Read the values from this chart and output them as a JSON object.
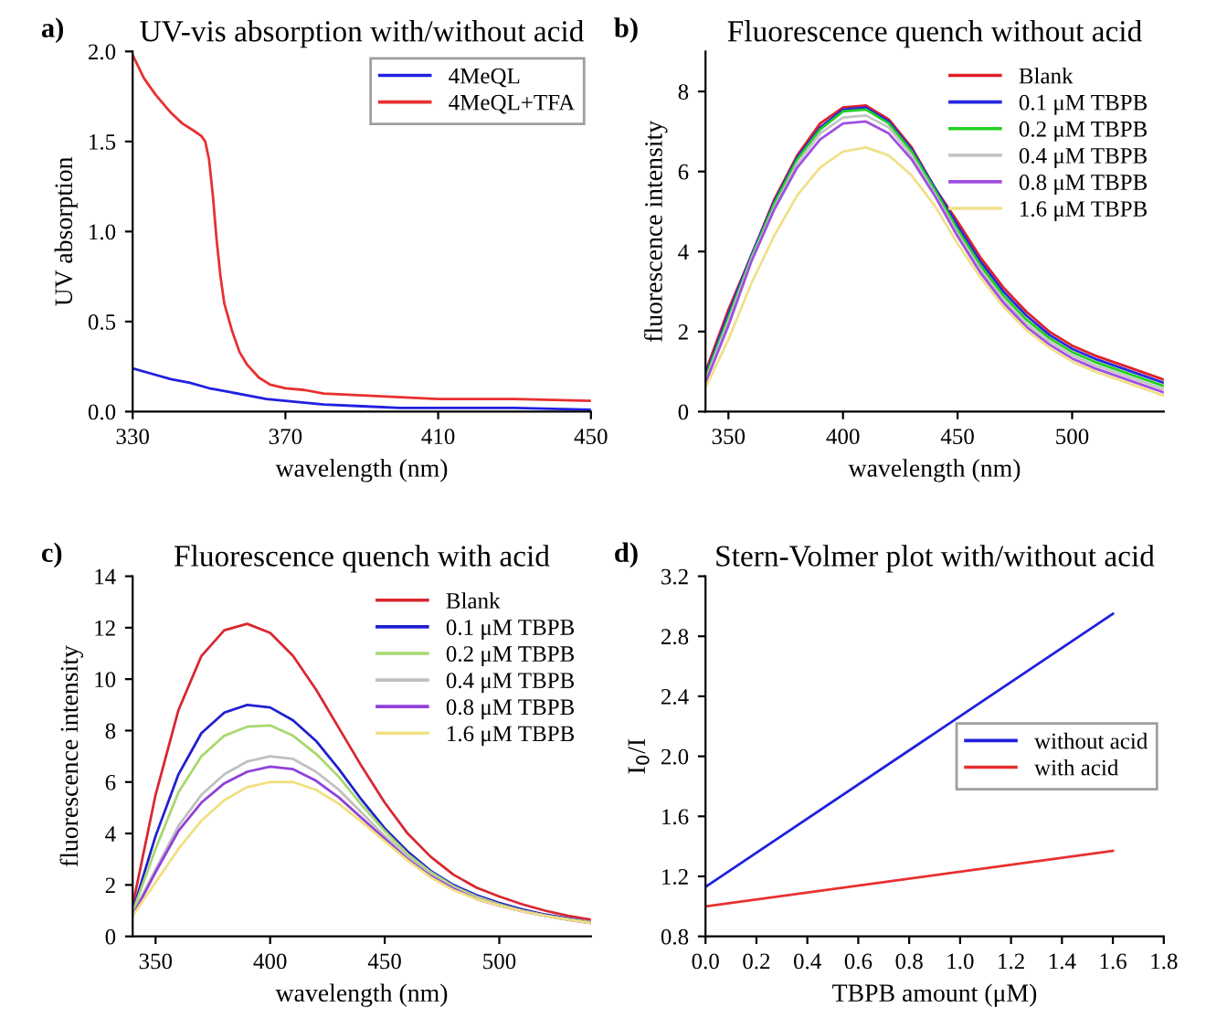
{
  "chart_data": [
    {
      "type": "line",
      "title": "UV-vis absorption with/without acid",
      "xlabel": "wavelength (nm)",
      "ylabel": "UV absorption",
      "annotations": [
        "a)"
      ],
      "xlim": [
        330,
        450
      ],
      "xticks": [
        330,
        370,
        410,
        450
      ],
      "ylim": [
        0,
        2.0
      ],
      "yticks": [
        {
          "value": 0,
          "label": "0.0"
        },
        {
          "value": 0.5,
          "label": "0.5"
        },
        {
          "value": 1.0,
          "label": "1.0"
        },
        {
          "value": 1.5,
          "label": "1.5"
        },
        {
          "value": 2.0,
          "label": "2.0"
        }
      ],
      "legend": "top right",
      "grid": false,
      "series": [
        {
          "name": "4MeQL",
          "color": "#2020e0",
          "x": [
            330,
            335,
            340,
            345,
            350,
            355,
            360,
            365,
            370,
            380,
            390,
            400,
            410,
            430,
            450
          ],
          "values": [
            0.24,
            0.21,
            0.18,
            0.16,
            0.13,
            0.11,
            0.09,
            0.07,
            0.06,
            0.04,
            0.03,
            0.02,
            0.02,
            0.02,
            0.01
          ]
        },
        {
          "name": "4MeQL+TFA",
          "color": "#e83030",
          "x": [
            330,
            333,
            336,
            340,
            343,
            346,
            348,
            349,
            350,
            351,
            352,
            353,
            354,
            356,
            358,
            360,
            363,
            366,
            370,
            375,
            380,
            390,
            400,
            410,
            430,
            450
          ],
          "values": [
            1.98,
            1.85,
            1.76,
            1.66,
            1.6,
            1.56,
            1.53,
            1.5,
            1.4,
            1.2,
            0.95,
            0.75,
            0.6,
            0.45,
            0.33,
            0.26,
            0.19,
            0.15,
            0.13,
            0.12,
            0.1,
            0.09,
            0.08,
            0.07,
            0.07,
            0.06
          ]
        }
      ]
    },
    {
      "type": "line",
      "title": "Fluorescence quench without acid",
      "xlabel": "wavelength (nm)",
      "ylabel": "fluorescence intensity",
      "annotations": [
        "b)"
      ],
      "x": [
        340,
        350,
        360,
        370,
        380,
        390,
        400,
        410,
        420,
        430,
        440,
        450,
        460,
        470,
        480,
        490,
        500,
        510,
        520,
        530,
        540
      ],
      "xlim": [
        340,
        540
      ],
      "xticks": [
        350,
        400,
        450,
        500
      ],
      "ylim": [
        0,
        9
      ],
      "yticks": [
        0,
        2,
        4,
        6,
        8
      ],
      "legend": "top right",
      "grid": false,
      "series": [
        {
          "name": "Blank",
          "color": "#e02028",
          "values": [
            1.0,
            2.55,
            3.9,
            5.3,
            6.4,
            7.2,
            7.6,
            7.65,
            7.3,
            6.6,
            5.6,
            4.75,
            3.85,
            3.1,
            2.5,
            2.0,
            1.65,
            1.4,
            1.2,
            1.0,
            0.8
          ]
        },
        {
          "name": "0.1 μM TBPB",
          "color": "#2828e0",
          "values": [
            0.92,
            2.45,
            3.9,
            5.25,
            6.35,
            7.1,
            7.55,
            7.6,
            7.25,
            6.55,
            5.6,
            4.65,
            3.75,
            3.0,
            2.4,
            1.92,
            1.57,
            1.32,
            1.12,
            0.92,
            0.72
          ]
        },
        {
          "name": "0.2 μM TBPB",
          "color": "#20d020",
          "values": [
            0.85,
            2.35,
            3.85,
            5.2,
            6.3,
            7.05,
            7.5,
            7.55,
            7.2,
            6.5,
            5.55,
            4.55,
            3.65,
            2.9,
            2.3,
            1.84,
            1.49,
            1.24,
            1.04,
            0.84,
            0.64
          ]
        },
        {
          "name": "0.4 μM TBPB",
          "color": "#c4c4c4",
          "values": [
            0.78,
            2.25,
            3.8,
            5.1,
            6.2,
            6.95,
            7.35,
            7.4,
            7.1,
            6.4,
            5.45,
            4.45,
            3.55,
            2.8,
            2.2,
            1.76,
            1.41,
            1.16,
            0.96,
            0.76,
            0.56
          ]
        },
        {
          "name": "0.8 μM TBPB",
          "color": "#a050e0",
          "values": [
            0.72,
            2.15,
            3.75,
            5.05,
            6.1,
            6.8,
            7.2,
            7.25,
            6.95,
            6.3,
            5.4,
            4.38,
            3.47,
            2.72,
            2.12,
            1.68,
            1.33,
            1.08,
            0.88,
            0.68,
            0.48
          ]
        },
        {
          "name": "1.6 μM TBPB",
          "color": "#f0e08a",
          "values": [
            0.6,
            1.8,
            3.2,
            4.4,
            5.4,
            6.1,
            6.5,
            6.6,
            6.4,
            5.9,
            5.15,
            4.2,
            3.35,
            2.62,
            2.04,
            1.6,
            1.25,
            1.0,
            0.8,
            0.6,
            0.4
          ]
        }
      ]
    },
    {
      "type": "line",
      "title": "Fluorescence quench with acid",
      "xlabel": "wavelength (nm)",
      "ylabel": "fluorescence intensity",
      "annotations": [
        "c)"
      ],
      "x": [
        340,
        350,
        360,
        370,
        380,
        390,
        400,
        410,
        420,
        430,
        440,
        450,
        460,
        470,
        480,
        490,
        500,
        510,
        520,
        530,
        540
      ],
      "xlim": [
        340,
        540
      ],
      "xticks": [
        350,
        400,
        450,
        500
      ],
      "ylim": [
        0,
        14
      ],
      "yticks": [
        0,
        2,
        4,
        6,
        8,
        10,
        12,
        14
      ],
      "legend": "top right",
      "grid": false,
      "series": [
        {
          "name": "Blank",
          "color": "#d82830",
          "values": [
            1.2,
            5.5,
            8.8,
            10.9,
            11.9,
            12.15,
            11.8,
            10.9,
            9.6,
            8.1,
            6.6,
            5.2,
            4.0,
            3.1,
            2.4,
            1.9,
            1.55,
            1.25,
            1.0,
            0.8,
            0.65
          ]
        },
        {
          "name": "0.1 μM TBPB",
          "color": "#2020d0",
          "values": [
            1.0,
            3.9,
            6.3,
            7.9,
            8.7,
            9.0,
            8.9,
            8.4,
            7.6,
            6.5,
            5.3,
            4.2,
            3.3,
            2.55,
            2.0,
            1.6,
            1.3,
            1.05,
            0.85,
            0.7,
            0.55
          ]
        },
        {
          "name": "0.2 μM TBPB",
          "color": "#a8d870",
          "values": [
            0.95,
            3.4,
            5.6,
            7.0,
            7.8,
            8.15,
            8.2,
            7.8,
            7.1,
            6.2,
            5.1,
            4.1,
            3.2,
            2.5,
            1.95,
            1.55,
            1.25,
            1.0,
            0.82,
            0.68,
            0.55
          ]
        },
        {
          "name": "0.4 μM TBPB",
          "color": "#c0c0c0",
          "values": [
            0.85,
            2.6,
            4.3,
            5.5,
            6.3,
            6.8,
            7.0,
            6.9,
            6.4,
            5.7,
            4.8,
            3.9,
            3.1,
            2.4,
            1.9,
            1.5,
            1.2,
            1.0,
            0.8,
            0.65,
            0.52
          ]
        },
        {
          "name": "0.8 μM TBPB",
          "color": "#9040d8",
          "values": [
            0.8,
            2.5,
            4.1,
            5.2,
            5.95,
            6.4,
            6.6,
            6.5,
            6.05,
            5.4,
            4.6,
            3.8,
            3.0,
            2.35,
            1.85,
            1.45,
            1.2,
            0.98,
            0.8,
            0.65,
            0.52
          ]
        },
        {
          "name": "1.6 μM TBPB",
          "color": "#f0e080",
          "values": [
            0.8,
            2.1,
            3.4,
            4.5,
            5.3,
            5.8,
            6.0,
            6.0,
            5.7,
            5.15,
            4.45,
            3.7,
            2.95,
            2.3,
            1.8,
            1.45,
            1.2,
            0.98,
            0.8,
            0.65,
            0.52
          ]
        }
      ]
    },
    {
      "type": "line",
      "title": "Stern-Volmer plot with/without acid",
      "xlabel": "TBPB amount (μM)",
      "ylabel": "I$_{0}$/I",
      "annotations": [
        "d)"
      ],
      "xlim": [
        0,
        1.8
      ],
      "xticks": [
        {
          "value": 0,
          "label": "0.0"
        },
        {
          "value": 0.2,
          "label": "0.2"
        },
        {
          "value": 0.4,
          "label": "0.4"
        },
        {
          "value": 0.6,
          "label": "0.6"
        },
        {
          "value": 0.8,
          "label": "0.8"
        },
        {
          "value": 1.0,
          "label": "1.0"
        },
        {
          "value": 1.2,
          "label": "1.2"
        },
        {
          "value": 1.4,
          "label": "1.4"
        },
        {
          "value": 1.6,
          "label": "1.6"
        },
        {
          "value": 1.8,
          "label": "1.8"
        }
      ],
      "ylim": [
        0.8,
        3.2
      ],
      "yticks": [
        {
          "value": 0.8,
          "label": "0.8"
        },
        {
          "value": 1.2,
          "label": "1.2"
        },
        {
          "value": 1.6,
          "label": "1.6"
        },
        {
          "value": 2.0,
          "label": "2.0"
        },
        {
          "value": 2.4,
          "label": "2.4"
        },
        {
          "value": 2.8,
          "label": "2.8"
        },
        {
          "value": 3.2,
          "label": "3.2"
        }
      ],
      "legend": "right",
      "grid": false,
      "series": [
        {
          "name": "without acid",
          "color": "#2020e0",
          "x": [
            0,
            1.6
          ],
          "values": [
            1.13,
            2.95
          ]
        },
        {
          "name": "with acid",
          "color": "#e83030",
          "x": [
            0,
            1.6
          ],
          "values": [
            1.0,
            1.37
          ]
        }
      ]
    }
  ]
}
